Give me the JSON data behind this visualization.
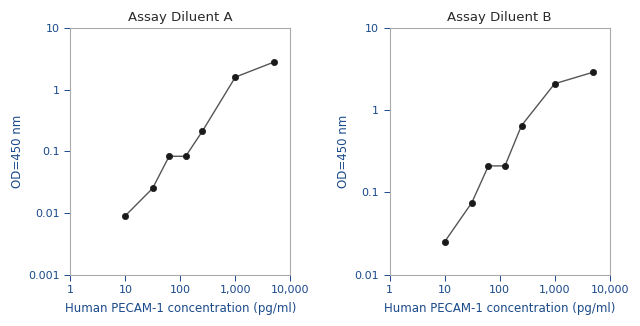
{
  "chart_A": {
    "title": "Assay Diluent A",
    "x_data": [
      10,
      31.25,
      62.5,
      125,
      250,
      1000,
      5000
    ],
    "y_data": [
      0.009,
      0.025,
      0.083,
      0.083,
      0.21,
      1.6,
      2.8
    ],
    "xlim": [
      1,
      10000
    ],
    "ylim": [
      0.001,
      10
    ],
    "ylabel": "OD=450 nm",
    "xlabel": "Human PECAM-1 concentration (pg/ml)",
    "yticks": [
      0.001,
      0.01,
      0.1,
      1,
      10
    ],
    "xticks": [
      1,
      10,
      100,
      1000,
      10000
    ],
    "xtick_labels": [
      "1",
      "10",
      "100",
      "1,000",
      "10,000"
    ]
  },
  "chart_B": {
    "title": "Assay Diluent B",
    "x_data": [
      10,
      31.25,
      62.5,
      125,
      250,
      1000,
      5000
    ],
    "y_data": [
      0.025,
      0.075,
      0.21,
      0.21,
      0.65,
      2.1,
      2.9
    ],
    "xlim": [
      1,
      10000
    ],
    "ylim": [
      0.01,
      10
    ],
    "ylabel": "OD=450 nm",
    "xlabel": "Human PECAM-1 concentration (pg/ml)",
    "yticks": [
      0.01,
      0.1,
      1,
      10
    ],
    "xticks": [
      1,
      10,
      100,
      1000,
      10000
    ],
    "xtick_labels": [
      "1",
      "10",
      "100",
      "1,000",
      "10,000"
    ]
  },
  "line_color": "#555555",
  "marker_color": "#1a1a1a",
  "title_color": "#2a2a2a",
  "label_color": "#1a4a8a",
  "tick_color": "#1a4a8a",
  "spine_color": "#aaaaaa",
  "background_color": "#ffffff"
}
